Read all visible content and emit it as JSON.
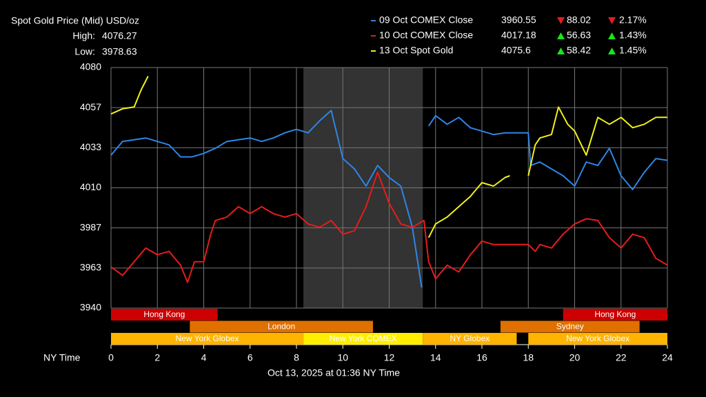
{
  "chart_data": {
    "type": "line",
    "title": "Spot Gold Price (Mid) USD/oz",
    "stats": [
      {
        "label": "High:",
        "value": 4076.27
      },
      {
        "label": "Low:",
        "value": 3978.63
      }
    ],
    "x_label": "NY Time",
    "footer": "Oct 13, 2025 at 01:36 NY Time",
    "xlim": [
      0,
      24
    ],
    "xticks": [
      0,
      2,
      4,
      6,
      8,
      10,
      12,
      14,
      16,
      18,
      20,
      22,
      24
    ],
    "ylim": [
      3940,
      4080
    ],
    "yticks": [
      3940,
      {
        "value": 3963.33,
        "label": "3963"
      },
      {
        "value": 3986.67,
        "label": "3987"
      },
      4010,
      {
        "value": 4033.33,
        "label": "4033"
      },
      {
        "value": 4056.67,
        "label": "4057"
      },
      4080
    ],
    "grid": true,
    "highlight": [
      8.3,
      13.45
    ],
    "sessions": [
      {
        "name": "Hong Kong",
        "start": 0,
        "end": 4.6,
        "row": 0,
        "color": "#cc0000"
      },
      {
        "name": "Hong Kong",
        "start": 19.5,
        "end": 24,
        "row": 0,
        "color": "#cc0000"
      },
      {
        "name": "London",
        "start": 3.4,
        "end": 11.3,
        "row": 1,
        "color": "#e07000"
      },
      {
        "name": "Sydney",
        "start": 16.8,
        "end": 22.8,
        "row": 1,
        "color": "#e07000"
      },
      {
        "name": "New York Globex",
        "start": 0,
        "end": 8.3,
        "row": 2,
        "color": "#ffb400"
      },
      {
        "name": "New York COMEX",
        "start": 8.3,
        "end": 13.45,
        "row": 2,
        "color": "#ffee00"
      },
      {
        "name": "NY Globex",
        "start": 13.45,
        "end": 17.5,
        "row": 2,
        "color": "#ffb400"
      },
      {
        "name": "New York Globex",
        "start": 18,
        "end": 24,
        "row": 2,
        "color": "#ffb400"
      }
    ],
    "series": [
      {
        "name": "09 Oct COMEX Close",
        "color": "#2f86e8",
        "last": 3960.55,
        "change": {
          "value": -88.02,
          "label": "88.02"
        },
        "change_pct": {
          "value": -2.17,
          "label": "2.17%"
        },
        "x": [
          0,
          0.5,
          1,
          1.5,
          2,
          2.5,
          3,
          3.5,
          4,
          4.5,
          5,
          5.5,
          6,
          6.5,
          7,
          7.5,
          8,
          8.5,
          9,
          9.5,
          10,
          10.5,
          11,
          11.5,
          12,
          12.5,
          13,
          13.4,
          13.55,
          13.7,
          14,
          14.5,
          15,
          15.5,
          16,
          16.5,
          17,
          17.5,
          18,
          18.1,
          18.5,
          19,
          19.5,
          20,
          20.5,
          21,
          21.5,
          22,
          22.5,
          23,
          23.5,
          24
        ],
        "values": [
          4029,
          4037,
          4038,
          4039,
          4037,
          4035,
          4028,
          4028,
          4030,
          4033,
          4037,
          4038,
          4039,
          4037,
          4039,
          4042,
          4044,
          4042,
          4049,
          4055,
          4027,
          4021,
          4011,
          4023,
          4016,
          4011,
          3987,
          3952,
          null,
          4046,
          4052,
          4047,
          4051,
          4045,
          4043,
          4041,
          4042,
          4042,
          4042,
          4023,
          4025,
          4021,
          4017,
          4011,
          4025,
          4023,
          4033,
          4017,
          4009,
          4019,
          4027,
          4026
        ]
      },
      {
        "name": "10 Oct COMEX Close",
        "color": "#e81c1c",
        "last": 4017.18,
        "change": {
          "value": 56.63,
          "label": "56.63"
        },
        "change_pct": {
          "value": 1.43,
          "label": "1.43%"
        },
        "x": [
          0,
          0.5,
          1,
          1.5,
          2,
          2.5,
          3,
          3.3,
          3.6,
          4,
          4.3,
          4.5,
          5,
          5.5,
          6,
          6.5,
          7,
          7.5,
          8,
          8.5,
          9,
          9.5,
          10,
          10.5,
          11,
          11.5,
          12,
          12.5,
          13,
          13.5,
          13.7,
          14,
          14.5,
          15,
          15.5,
          16,
          16.5,
          17,
          17.5,
          18,
          18.3,
          18.5,
          19,
          19.5,
          20,
          20.5,
          21,
          21.5,
          22,
          22.5,
          23,
          23.5,
          24
        ],
        "values": [
          3964,
          3959,
          3967,
          3975,
          3971,
          3973,
          3965,
          3955,
          3967,
          3967,
          3983,
          3991,
          3993,
          3999,
          3995,
          3999,
          3995,
          3993,
          3995,
          3989,
          3987,
          3991,
          3983,
          3985,
          3999,
          4019,
          4001,
          3989,
          3987,
          3991,
          3967,
          3957,
          3965,
          3961,
          3971,
          3979,
          3977,
          3977,
          3977,
          3977,
          3973,
          3977,
          3975,
          3983,
          3989,
          3992,
          3991,
          3981,
          3975,
          3983,
          3981,
          3969,
          3965
        ]
      },
      {
        "name": "13 Oct Spot Gold",
        "color": "#f2f21a",
        "last": 4075.6,
        "change": {
          "value": 58.42,
          "label": "58.42"
        },
        "change_pct": {
          "value": 1.45,
          "label": "1.45%"
        },
        "x": [
          0,
          0.5,
          1,
          1.3,
          1.6,
          7.6,
          13.7,
          14,
          14.5,
          15,
          15.5,
          16,
          16.5,
          17,
          17.2,
          17.6,
          18,
          18.3,
          18.5,
          19,
          19.3,
          19.7,
          20,
          20.5,
          21,
          21.5,
          22,
          22.5,
          23,
          23.5,
          24
        ],
        "values": [
          4053,
          4056,
          4057,
          4067,
          4075,
          null,
          3981,
          3989,
          3993,
          3999,
          4005,
          4013,
          4011,
          4016,
          4017,
          null,
          4017,
          4035,
          4039,
          4041,
          4057,
          4047,
          4043,
          4029,
          4051,
          4047,
          4051,
          4045,
          4047,
          4051,
          4051
        ]
      }
    ]
  }
}
